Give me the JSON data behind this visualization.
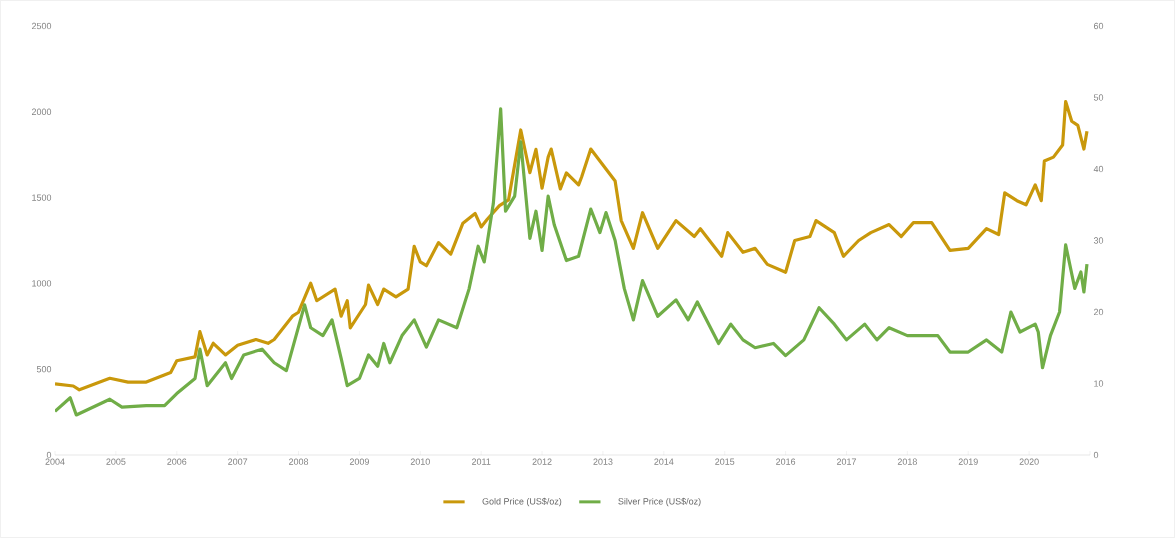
{
  "chart_data": {
    "type": "line",
    "legend": "bottom",
    "grid": false,
    "xlim": [
      2004,
      2021
    ],
    "xticks": [
      2004,
      2005,
      2006,
      2007,
      2008,
      2009,
      2010,
      2011,
      2012,
      2013,
      2014,
      2015,
      2016,
      2017,
      2018,
      2019,
      2020,
      {
        "value": 2021,
        "label": null
      }
    ],
    "ylim": [
      0,
      2500
    ],
    "yticks": [
      0,
      500,
      1000,
      1500,
      2000,
      2500
    ],
    "y2lim": [
      0,
      60
    ],
    "y2ticks": [
      0,
      10,
      20,
      30,
      40,
      50,
      60
    ],
    "series": [
      {
        "name": "Gold Price (US$/oz)",
        "color": "#c9980b",
        "x": [
          2004.0,
          2004.3,
          2004.4,
          2004.9,
          2005.2,
          2005.5,
          2005.9,
          2006.0,
          2006.3,
          2006.38,
          2006.5,
          2006.6,
          2006.8,
          2007.0,
          2007.3,
          2007.5,
          2007.6,
          2007.9,
          2008.0,
          2008.2,
          2008.3,
          2008.45,
          2008.6,
          2008.7,
          2008.8,
          2008.85,
          2009.1,
          2009.15,
          2009.3,
          2009.4,
          2009.6,
          2009.8,
          2009.9,
          2010.0,
          2010.1,
          2010.3,
          2010.5,
          2010.7,
          2010.9,
          2011.0,
          2011.1,
          2011.3,
          2011.45,
          2011.65,
          2011.8,
          2011.9,
          2012.0,
          2012.1,
          2012.15,
          2012.3,
          2012.4,
          2012.6,
          2012.65,
          2012.8,
          2013.0,
          2013.2,
          2013.25,
          2013.3,
          2013.5,
          2013.65,
          2013.9,
          2014.2,
          2014.5,
          2014.6,
          2014.95,
          2015.05,
          2015.3,
          2015.5,
          2015.7,
          2016.0,
          2016.15,
          2016.4,
          2016.5,
          2016.8,
          2016.95,
          2017.2,
          2017.4,
          2017.7,
          2017.9,
          2018.1,
          2018.4,
          2018.7,
          2019.0,
          2019.3,
          2019.5,
          2019.6,
          2019.8,
          2019.95,
          2020.1,
          2020.2,
          2020.25,
          2020.4,
          2020.55,
          2020.6,
          2020.7,
          2020.8,
          2020.9,
          2020.95
        ],
        "values": [
          414,
          402,
          380,
          447,
          425,
          425,
          481,
          549,
          572,
          719,
          583,
          651,
          583,
          640,
          673,
          651,
          673,
          809,
          832,
          1001,
          899,
          933,
          967,
          809,
          899,
          741,
          877,
          990,
          877,
          967,
          922,
          967,
          1216,
          1125,
          1103,
          1238,
          1171,
          1351,
          1408,
          1329,
          1374,
          1453,
          1487,
          1894,
          1645,
          1781,
          1555,
          1736,
          1783,
          1551,
          1644,
          1574,
          1620,
          1783,
          1690,
          1597,
          1482,
          1366,
          1204,
          1412,
          1204,
          1366,
          1273,
          1319,
          1158,
          1296,
          1181,
          1204,
          1111,
          1065,
          1250,
          1273,
          1366,
          1296,
          1158,
          1250,
          1296,
          1343,
          1273,
          1354,
          1354,
          1192,
          1204,
          1319,
          1285,
          1528,
          1482,
          1458,
          1574,
          1482,
          1713,
          1736,
          1806,
          2060,
          1945,
          1921,
          1783,
          1887
        ]
      },
      {
        "name": "Silver Price (US$/oz)",
        "color": "#70ad47",
        "axis": "y2",
        "x": [
          2004.0,
          2004.25,
          2004.35,
          2004.9,
          2005.1,
          2005.5,
          2005.8,
          2006.0,
          2006.3,
          2006.38,
          2006.5,
          2006.8,
          2006.9,
          2007.1,
          2007.4,
          2007.6,
          2007.8,
          2008.1,
          2008.2,
          2008.4,
          2008.55,
          2008.7,
          2008.8,
          2009.0,
          2009.15,
          2009.3,
          2009.4,
          2009.5,
          2009.7,
          2009.9,
          2010.1,
          2010.3,
          2010.6,
          2010.8,
          2010.95,
          2011.05,
          2011.2,
          2011.32,
          2011.4,
          2011.55,
          2011.65,
          2011.8,
          2011.9,
          2012.0,
          2012.1,
          2012.2,
          2012.4,
          2012.6,
          2012.8,
          2012.95,
          2013.05,
          2013.2,
          2013.35,
          2013.5,
          2013.65,
          2013.9,
          2014.2,
          2014.4,
          2014.55,
          2014.9,
          2015.1,
          2015.3,
          2015.5,
          2015.8,
          2016.0,
          2016.3,
          2016.55,
          2016.8,
          2017.0,
          2017.3,
          2017.5,
          2017.7,
          2018.0,
          2018.5,
          2018.7,
          2019.0,
          2019.3,
          2019.55,
          2019.7,
          2019.85,
          2020.1,
          2020.15,
          2020.22,
          2020.35,
          2020.5,
          2020.6,
          2020.75,
          2020.85,
          2020.9,
          2020.95
        ],
        "values": [
          6.1,
          8.0,
          5.6,
          7.8,
          6.7,
          6.9,
          6.9,
          8.6,
          10.7,
          14.8,
          9.7,
          12.9,
          10.7,
          14.0,
          14.8,
          12.9,
          11.8,
          21.0,
          17.8,
          16.7,
          18.9,
          13.5,
          9.7,
          10.7,
          14.0,
          12.4,
          15.6,
          12.9,
          16.7,
          18.9,
          15.1,
          18.9,
          17.8,
          23.2,
          29.2,
          27.0,
          35.2,
          48.4,
          34.1,
          36.2,
          43.8,
          30.3,
          34.1,
          28.6,
          36.2,
          32.2,
          27.2,
          27.8,
          34.4,
          31.1,
          33.9,
          30.0,
          23.3,
          18.9,
          24.4,
          19.4,
          21.7,
          18.9,
          21.4,
          15.6,
          18.3,
          16.1,
          15.0,
          15.6,
          13.9,
          16.1,
          20.6,
          18.3,
          16.1,
          18.3,
          16.1,
          17.8,
          16.7,
          16.7,
          14.4,
          14.4,
          16.1,
          14.4,
          20.0,
          17.2,
          18.3,
          17.2,
          12.2,
          16.7,
          20.0,
          29.4,
          23.3,
          25.6,
          22.8,
          26.7
        ]
      }
    ]
  }
}
